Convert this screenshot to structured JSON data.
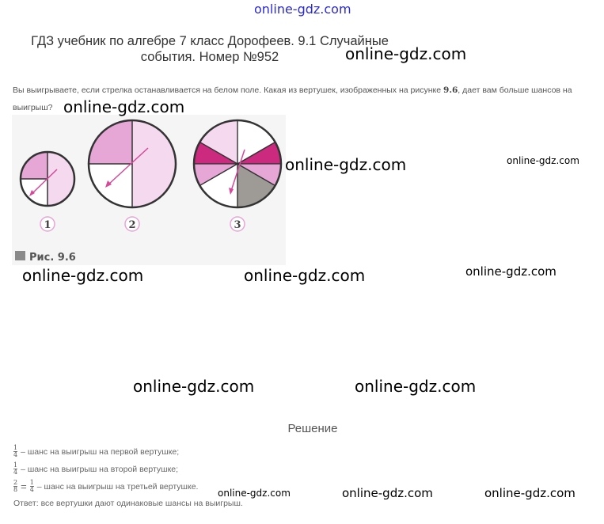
{
  "header": {
    "watermark": "online-gdz.com"
  },
  "title": {
    "line1": "ГДЗ учебник по алгебре 7 класс Дорофеев. 9.1 Случайные",
    "line2": "события. Номер №952"
  },
  "problem": {
    "text_a": "Вы выигрываете, если стрелка останавливается на белом поле. Какая из вертушек, изображенных на рисунке ",
    "fig_ref": "9.6",
    "text_b": ", дает вам больше шансов на выигрыш?"
  },
  "figure": {
    "labels": [
      "1",
      "2",
      "3"
    ],
    "caption": "Рис. 9.6",
    "colors": {
      "light_pink": "#f5d9ee",
      "pink": "#e6a6d6",
      "magenta": "#cc2a7e",
      "gray": "#9e9a96",
      "arrow": "#d6489a"
    }
  },
  "watermarks": [
    "online-gdz.com",
    "online-gdz.com",
    "online-gdz.com",
    "online-gdz.com",
    "online-gdz.com",
    "online-gdz.com",
    "online-gdz.com",
    "online-gdz.com",
    "online-gdz.com",
    "online-gdz.com",
    "online-gdz.com",
    "online-gdz.com"
  ],
  "solution": {
    "heading": "Решение",
    "lines": [
      {
        "num": "1",
        "den": "4",
        "text": "– шанс на выигрыш на первой вертушке;"
      },
      {
        "num": "1",
        "den": "4",
        "text": "– шанс на выигрыш на второй вертушке;"
      },
      {
        "num": "2",
        "den": "8",
        "eq": "=",
        "num2": "1",
        "den2": "4",
        "text": "– шанс на выигрыш на третьей вертушке."
      }
    ],
    "answer": "Ответ: все вертушки дают одинаковые шансы на выигрыш."
  }
}
